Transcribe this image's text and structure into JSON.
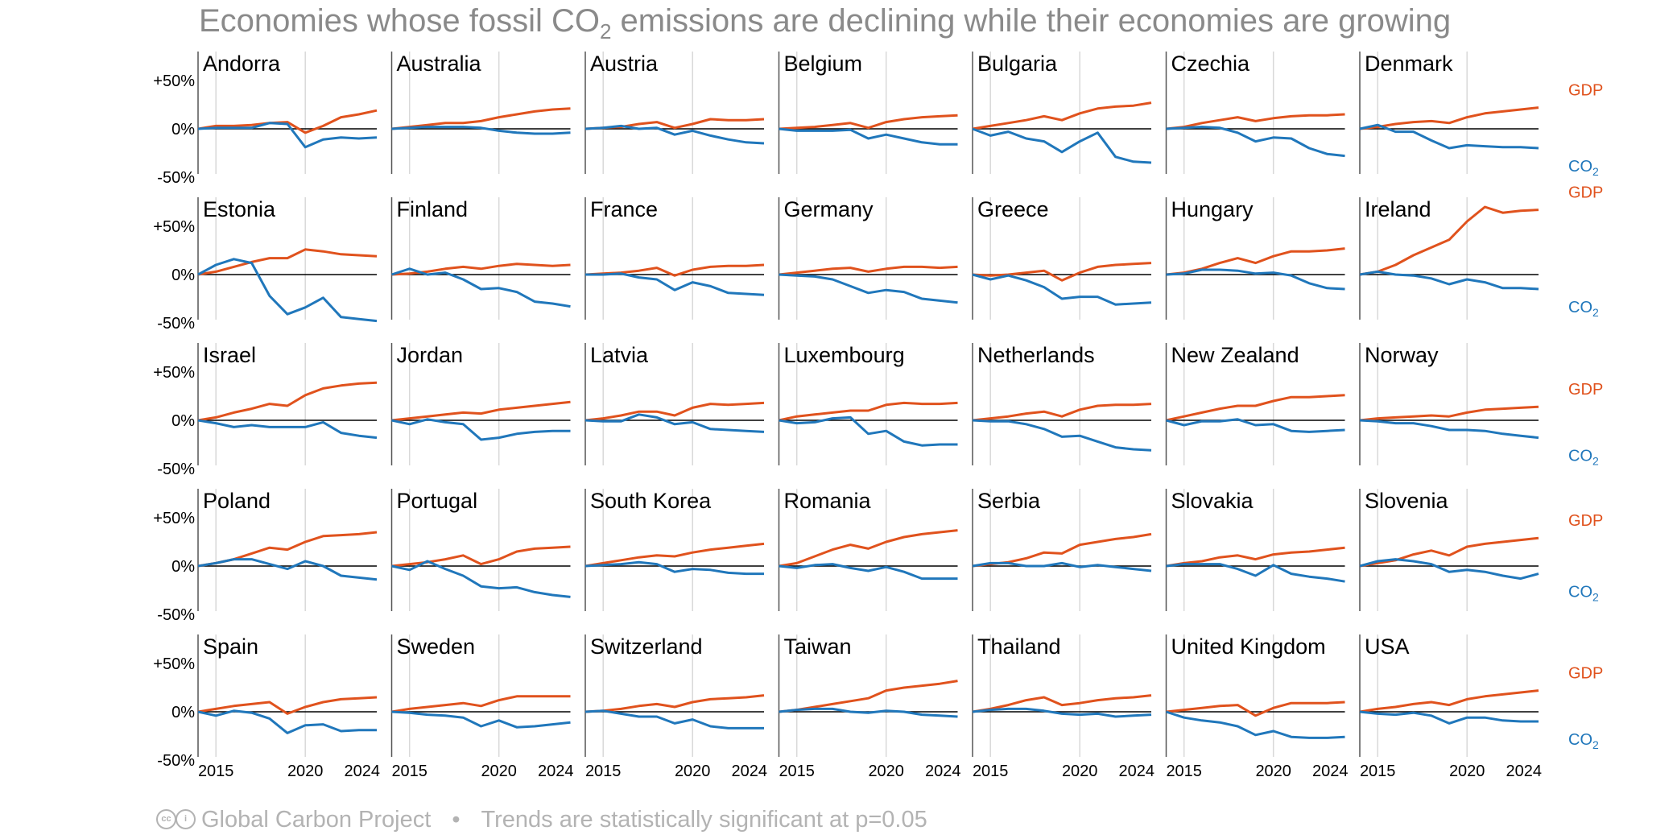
{
  "title": {
    "pre": "Economies whose fossil CO",
    "sub": "2",
    "post": " emissions are declining while their economies are growing"
  },
  "footer": {
    "source": "Global Carbon Project",
    "separator": "•",
    "note": "Trends are statistically significant at p=0.05",
    "license_icons": "cc-by-icons"
  },
  "colors": {
    "gdp": "#e0521d",
    "co2": "#2077bb",
    "grid": "#d9d9d9",
    "axis": "#000000"
  },
  "chart_data": {
    "type": "line",
    "layout": "small-multiples",
    "x": [
      2014,
      2015,
      2016,
      2017,
      2018,
      2019,
      2020,
      2021,
      2022,
      2023,
      2024
    ],
    "xticks": [
      "2015",
      "2020",
      "2024"
    ],
    "xtick_values": [
      2015,
      2020,
      2024
    ],
    "yticks": [
      "+50%",
      "0%",
      "-50%"
    ],
    "ytick_values": [
      50,
      0,
      -50
    ],
    "ylim": [
      -50,
      75
    ],
    "grid": true,
    "legend": {
      "gdp": "GDP",
      "co2_pre": "CO",
      "co2_sub": "2",
      "placement": "right"
    },
    "panels": [
      {
        "name": "Andorra",
        "gdp": [
          0,
          3,
          3,
          4,
          6,
          7,
          -4,
          3,
          12,
          15,
          19
        ],
        "co2": [
          0,
          1,
          1,
          1,
          6,
          5,
          -19,
          -11,
          -9,
          -10,
          -9
        ]
      },
      {
        "name": "Australia",
        "gdp": [
          0,
          2,
          4,
          6,
          6,
          8,
          12,
          15,
          18,
          20,
          21
        ],
        "co2": [
          0,
          1,
          2,
          2,
          2,
          1,
          -2,
          -4,
          -5,
          -5,
          -4
        ]
      },
      {
        "name": "Austria",
        "gdp": [
          0,
          1,
          2,
          5,
          7,
          1,
          5,
          10,
          9,
          9,
          10
        ],
        "co2": [
          0,
          1,
          3,
          0,
          1,
          -6,
          -2,
          -7,
          -11,
          -14,
          -15
        ]
      },
      {
        "name": "Belgium",
        "gdp": [
          0,
          1,
          2,
          4,
          6,
          1,
          7,
          10,
          12,
          13,
          14
        ],
        "co2": [
          0,
          -2,
          -2,
          -2,
          -1,
          -10,
          -6,
          -10,
          -14,
          -16,
          -16
        ]
      },
      {
        "name": "Bulgaria",
        "gdp": [
          0,
          3,
          6,
          9,
          13,
          9,
          16,
          21,
          23,
          24,
          27
        ],
        "co2": [
          0,
          -7,
          -3,
          -10,
          -13,
          -24,
          -13,
          -4,
          -29,
          -34,
          -35
        ]
      },
      {
        "name": "Czechia",
        "gdp": [
          0,
          2,
          6,
          9,
          12,
          8,
          11,
          13,
          14,
          14,
          15
        ],
        "co2": [
          0,
          1,
          2,
          1,
          -4,
          -13,
          -9,
          -10,
          -20,
          -26,
          -28
        ]
      },
      {
        "name": "Denmark",
        "gdp": [
          0,
          2,
          5,
          7,
          8,
          6,
          12,
          16,
          18,
          20,
          22
        ],
        "co2": [
          0,
          4,
          -3,
          -3,
          -12,
          -20,
          -17,
          -18,
          -19,
          -19,
          -20
        ]
      },
      {
        "name": "Estonia",
        "gdp": [
          0,
          3,
          8,
          13,
          17,
          17,
          26,
          24,
          21,
          20,
          19
        ],
        "co2": [
          0,
          10,
          16,
          12,
          -22,
          -41,
          -34,
          -24,
          -44,
          -46,
          -48
        ]
      },
      {
        "name": "Finland",
        "gdp": [
          0,
          1,
          3,
          6,
          8,
          6,
          9,
          11,
          10,
          9,
          10
        ],
        "co2": [
          0,
          6,
          0,
          2,
          -5,
          -15,
          -14,
          -18,
          -28,
          -30,
          -33
        ]
      },
      {
        "name": "France",
        "gdp": [
          0,
          1,
          2,
          4,
          7,
          -1,
          5,
          8,
          9,
          9,
          10
        ],
        "co2": [
          0,
          0,
          1,
          -3,
          -5,
          -16,
          -8,
          -12,
          -19,
          -20,
          -21
        ]
      },
      {
        "name": "Germany",
        "gdp": [
          0,
          2,
          4,
          6,
          7,
          3,
          6,
          8,
          8,
          7,
          8
        ],
        "co2": [
          0,
          -1,
          -2,
          -5,
          -12,
          -19,
          -16,
          -18,
          -25,
          -27,
          -29
        ]
      },
      {
        "name": "Greece",
        "gdp": [
          0,
          -1,
          0,
          2,
          4,
          -6,
          2,
          8,
          10,
          11,
          12
        ],
        "co2": [
          0,
          -5,
          -1,
          -6,
          -13,
          -25,
          -23,
          -23,
          -31,
          -30,
          -29
        ]
      },
      {
        "name": "Hungary",
        "gdp": [
          0,
          2,
          6,
          12,
          17,
          12,
          19,
          24,
          24,
          25,
          27
        ],
        "co2": [
          0,
          1,
          5,
          5,
          4,
          1,
          2,
          -1,
          -9,
          -14,
          -15
        ]
      },
      {
        "name": "Ireland",
        "gdp": [
          0,
          3,
          10,
          20,
          28,
          36,
          55,
          70,
          64,
          66,
          67
        ],
        "co2": [
          0,
          3,
          0,
          -1,
          -4,
          -10,
          -5,
          -8,
          -14,
          -14,
          -15
        ]
      },
      {
        "name": "Israel",
        "gdp": [
          0,
          3,
          8,
          12,
          17,
          15,
          26,
          33,
          36,
          38,
          39
        ],
        "co2": [
          0,
          -3,
          -7,
          -5,
          -7,
          -7,
          -7,
          -2,
          -13,
          -16,
          -18
        ]
      },
      {
        "name": "Jordan",
        "gdp": [
          0,
          2,
          4,
          6,
          8,
          7,
          11,
          13,
          15,
          17,
          19
        ],
        "co2": [
          0,
          -4,
          1,
          -2,
          -4,
          -20,
          -18,
          -14,
          -12,
          -11,
          -11
        ]
      },
      {
        "name": "Latvia",
        "gdp": [
          0,
          2,
          5,
          9,
          9,
          5,
          13,
          17,
          16,
          17,
          18
        ],
        "co2": [
          0,
          -1,
          -1,
          6,
          3,
          -4,
          -2,
          -9,
          -10,
          -11,
          -12
        ]
      },
      {
        "name": "Luxembourg",
        "gdp": [
          0,
          4,
          6,
          8,
          10,
          10,
          16,
          18,
          17,
          17,
          18
        ],
        "co2": [
          0,
          -3,
          -2,
          2,
          3,
          -14,
          -11,
          -22,
          -26,
          -25,
          -25
        ]
      },
      {
        "name": "Netherlands",
        "gdp": [
          0,
          2,
          4,
          7,
          9,
          4,
          11,
          15,
          16,
          16,
          17
        ],
        "co2": [
          0,
          -1,
          -1,
          -4,
          -9,
          -17,
          -16,
          -22,
          -28,
          -30,
          -31
        ]
      },
      {
        "name": "New Zealand",
        "gdp": [
          0,
          4,
          8,
          12,
          15,
          15,
          20,
          24,
          24,
          25,
          26
        ],
        "co2": [
          0,
          -5,
          -1,
          -1,
          1,
          -5,
          -4,
          -11,
          -12,
          -11,
          -10
        ]
      },
      {
        "name": "Norway",
        "gdp": [
          0,
          2,
          3,
          4,
          5,
          4,
          8,
          11,
          12,
          13,
          14
        ],
        "co2": [
          0,
          -1,
          -3,
          -3,
          -6,
          -10,
          -10,
          -11,
          -14,
          -16,
          -18
        ]
      },
      {
        "name": "Poland",
        "gdp": [
          0,
          3,
          7,
          13,
          19,
          17,
          25,
          31,
          32,
          33,
          35
        ],
        "co2": [
          0,
          3,
          7,
          7,
          2,
          -3,
          5,
          0,
          -10,
          -12,
          -14
        ]
      },
      {
        "name": "Portugal",
        "gdp": [
          0,
          2,
          4,
          7,
          11,
          2,
          7,
          15,
          18,
          19,
          20
        ],
        "co2": [
          0,
          -4,
          5,
          -3,
          -10,
          -21,
          -23,
          -22,
          -27,
          -30,
          -32
        ]
      },
      {
        "name": "South Korea",
        "gdp": [
          0,
          3,
          6,
          9,
          11,
          10,
          14,
          17,
          19,
          21,
          23
        ],
        "co2": [
          0,
          1,
          2,
          4,
          2,
          -6,
          -3,
          -4,
          -7,
          -8,
          -8
        ]
      },
      {
        "name": "Romania",
        "gdp": [
          0,
          3,
          10,
          17,
          22,
          18,
          25,
          30,
          33,
          35,
          37
        ],
        "co2": [
          0,
          -2,
          1,
          2,
          -2,
          -5,
          -1,
          -6,
          -13,
          -13,
          -13
        ]
      },
      {
        "name": "Serbia",
        "gdp": [
          0,
          2,
          4,
          8,
          14,
          13,
          22,
          25,
          28,
          30,
          33
        ],
        "co2": [
          0,
          3,
          3,
          0,
          0,
          3,
          -1,
          1,
          -1,
          -3,
          -5
        ]
      },
      {
        "name": "Slovakia",
        "gdp": [
          0,
          3,
          5,
          9,
          11,
          7,
          12,
          14,
          15,
          17,
          19
        ],
        "co2": [
          0,
          2,
          2,
          2,
          -3,
          -10,
          1,
          -8,
          -11,
          -13,
          -16
        ]
      },
      {
        "name": "Slovenia",
        "gdp": [
          0,
          3,
          6,
          12,
          16,
          11,
          20,
          23,
          25,
          27,
          29
        ],
        "co2": [
          0,
          5,
          7,
          5,
          2,
          -6,
          -4,
          -6,
          -10,
          -13,
          -8
        ]
      },
      {
        "name": "Spain",
        "gdp": [
          0,
          3,
          6,
          8,
          10,
          -2,
          5,
          10,
          13,
          14,
          15
        ],
        "co2": [
          0,
          -4,
          1,
          -1,
          -7,
          -22,
          -14,
          -13,
          -20,
          -19,
          -19
        ]
      },
      {
        "name": "Sweden",
        "gdp": [
          0,
          3,
          5,
          7,
          9,
          6,
          12,
          16,
          16,
          16,
          16
        ],
        "co2": [
          0,
          -1,
          -3,
          -4,
          -6,
          -15,
          -9,
          -16,
          -15,
          -13,
          -11
        ]
      },
      {
        "name": "Switzerland",
        "gdp": [
          0,
          1,
          3,
          6,
          8,
          5,
          10,
          13,
          14,
          15,
          17
        ],
        "co2": [
          0,
          1,
          -2,
          -5,
          -5,
          -12,
          -8,
          -15,
          -17,
          -17,
          -17
        ]
      },
      {
        "name": "Taiwan",
        "gdp": [
          0,
          2,
          5,
          8,
          11,
          14,
          22,
          25,
          27,
          29,
          32
        ],
        "co2": [
          0,
          2,
          3,
          3,
          0,
          -1,
          1,
          0,
          -3,
          -4,
          -5
        ]
      },
      {
        "name": "Thailand",
        "gdp": [
          0,
          3,
          7,
          12,
          15,
          7,
          9,
          12,
          14,
          15,
          17
        ],
        "co2": [
          0,
          2,
          3,
          3,
          1,
          -2,
          -3,
          -2,
          -5,
          -4,
          -3
        ]
      },
      {
        "name": "United Kingdom",
        "gdp": [
          0,
          2,
          4,
          6,
          7,
          -4,
          4,
          9,
          9,
          9,
          10
        ],
        "co2": [
          0,
          -6,
          -9,
          -11,
          -15,
          -24,
          -20,
          -26,
          -27,
          -27,
          -26
        ]
      },
      {
        "name": "USA",
        "gdp": [
          0,
          3,
          5,
          8,
          10,
          7,
          13,
          16,
          18,
          20,
          22
        ],
        "co2": [
          0,
          -2,
          -3,
          -1,
          -4,
          -12,
          -6,
          -6,
          -9,
          -10,
          -10
        ]
      }
    ]
  }
}
